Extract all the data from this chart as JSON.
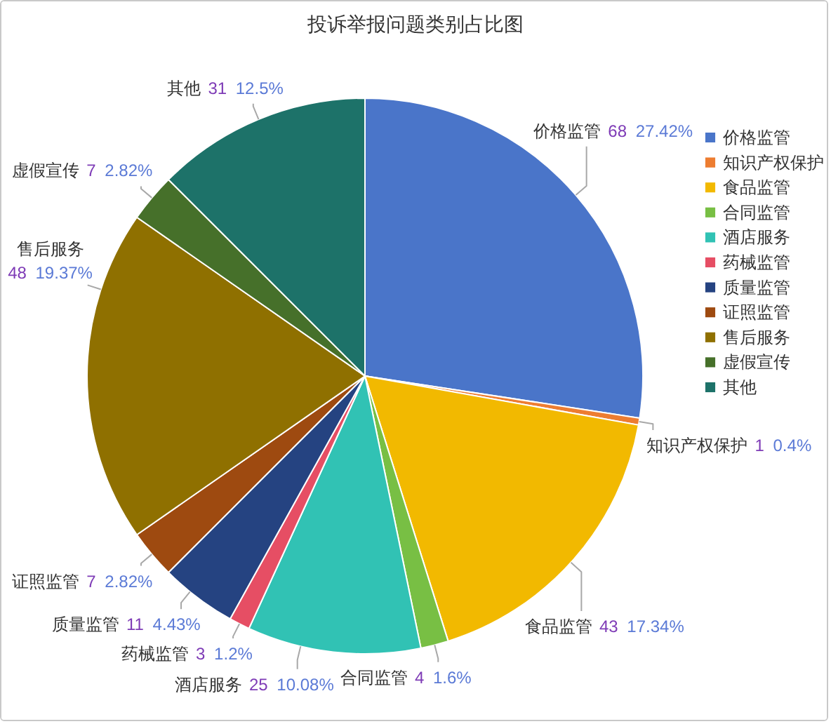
{
  "chart_data": {
    "type": "pie",
    "title": "投诉举报问题类别占比图",
    "categories": [
      "价格监管",
      "知识产权保护",
      "食品监管",
      "合同监管",
      "酒店服务",
      "药械监管",
      "质量监管",
      "证照监管",
      "售后服务",
      "虚假宣传",
      "其他"
    ],
    "values": [
      68,
      1,
      43,
      4,
      25,
      3,
      11,
      7,
      48,
      7,
      31
    ],
    "colors": [
      "#4a75c9",
      "#ed7d31",
      "#f2b900",
      "#78bf44",
      "#31c2b4",
      "#e64e64",
      "#254381",
      "#9e4a10",
      "#8f7000",
      "#46702a",
      "#1d7269"
    ],
    "value_labels": [
      "68 27.42%",
      "1 0.4%",
      "43 17.34%",
      "4 1.6%",
      "25 10.08%",
      "3 1.2%",
      "11 4.43%",
      "7 2.82%",
      "48 19.37%",
      "7 2.82%",
      "31 12.5%"
    ],
    "legend": "right"
  }
}
